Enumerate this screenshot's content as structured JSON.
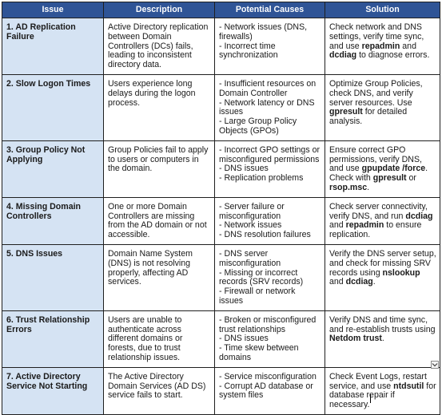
{
  "headers": [
    "Issue",
    "Description",
    "Potential Causes",
    "Solution"
  ],
  "rows": [
    {
      "issue": "1. AD Replication Failure",
      "description": "Active Directory replication between Domain Controllers (DCs) fails, leading to inconsistent directory data.",
      "causes": [
        "- Network issues (DNS, firewalls)",
        "- Incorrect time synchronization"
      ],
      "solution": [
        {
          "text": "Check network and DNS settings, verify time sync, and use ",
          "bold": false
        },
        {
          "text": "repadmin",
          "bold": true
        },
        {
          "text": " and ",
          "bold": false
        },
        {
          "text": "dcdiag",
          "bold": true
        },
        {
          "text": " to diagnose errors.",
          "bold": false
        }
      ]
    },
    {
      "issue": "2. Slow Logon Times",
      "description": "Users experience long delays during the logon process.",
      "causes": [
        "- Insufficient resources on Domain Controller",
        "- Network latency or DNS issues",
        "- Large Group Policy Objects (GPOs)"
      ],
      "solution": [
        {
          "text": "Optimize Group Policies, check DNS, and verify server resources. Use ",
          "bold": false
        },
        {
          "text": "gpresult",
          "bold": true
        },
        {
          "text": " for detailed analysis.",
          "bold": false
        }
      ]
    },
    {
      "issue": "3. Group Policy Not Applying",
      "description": "Group Policies fail to apply to users or computers in the domain.",
      "causes": [
        "- Incorrect GPO settings or misconfigured permissions",
        "- DNS issues",
        "- Replication problems"
      ],
      "solution": [
        {
          "text": "Ensure correct GPO permissions, verify DNS, and use ",
          "bold": false
        },
        {
          "text": "gpupdate /force",
          "bold": true
        },
        {
          "text": ". Check with ",
          "bold": false
        },
        {
          "text": "gpresult",
          "bold": true
        },
        {
          "text": " or ",
          "bold": false
        },
        {
          "text": "rsop.msc",
          "bold": true
        },
        {
          "text": ".",
          "bold": false
        }
      ]
    },
    {
      "issue": "4. Missing Domain Controllers",
      "description": "One or more Domain Controllers are missing from the AD domain or not accessible.",
      "causes": [
        "- Server failure or misconfiguration",
        "- Network issues",
        "- DNS resolution failures"
      ],
      "solution": [
        {
          "text": "Check server connectivity, verify DNS, and run ",
          "bold": false
        },
        {
          "text": "dcdiag",
          "bold": true
        },
        {
          "text": " and ",
          "bold": false
        },
        {
          "text": "repadmin",
          "bold": true
        },
        {
          "text": " to ensure replication.",
          "bold": false
        }
      ]
    },
    {
      "issue": "5. DNS Issues",
      "description": "Domain Name System (DNS) is not resolving properly, affecting AD services.",
      "causes": [
        "- DNS server misconfiguration",
        "- Missing or incorrect records (SRV records)",
        "- Firewall or network issues"
      ],
      "solution": [
        {
          "text": "Verify the DNS server setup, and check for missing SRV records using ",
          "bold": false
        },
        {
          "text": "nslookup",
          "bold": true
        },
        {
          "text": " and ",
          "bold": false
        },
        {
          "text": "dcdiag",
          "bold": true
        },
        {
          "text": ".",
          "bold": false
        }
      ]
    },
    {
      "issue": "6. Trust Relationship Errors",
      "description": "Users are unable to authenticate across different domains or forests, due to trust relationship issues.",
      "causes": [
        "- Broken or misconfigured trust relationships",
        "- DNS issues",
        "- Time skew between domains"
      ],
      "solution": [
        {
          "text": "Verify DNS and time sync, and re-establish trusts using ",
          "bold": false
        },
        {
          "text": "Netdom trust",
          "bold": true
        },
        {
          "text": ".",
          "bold": false
        }
      ]
    },
    {
      "issue": "7. Active Directory Service Not Starting",
      "description": "The Active Directory Domain Services (AD DS) service fails to start.",
      "causes": [
        "- Service misconfiguration",
        "- Corrupt AD database or system files"
      ],
      "solution": [
        {
          "text": "Check Event Logs, restart service, and use ",
          "bold": false
        },
        {
          "text": "ntdsutil",
          "bold": true
        },
        {
          "text": " for database repair if necessary.",
          "bold": false
        }
      ]
    }
  ]
}
